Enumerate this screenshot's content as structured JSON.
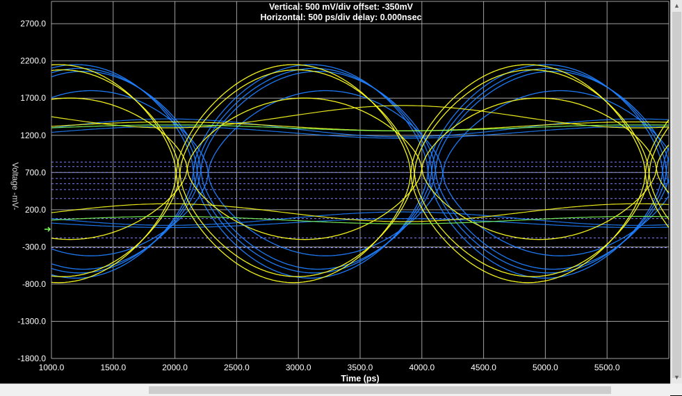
{
  "header": {
    "line1": "Vertical: 500 mV/div  offset: -350mV",
    "line2": "Horizontal: 500 ps/div  delay: 0.000nsec"
  },
  "colors": {
    "background": "#000000",
    "grid": "#c8c8c8",
    "axis_text": "#ffffff",
    "trace_blue": "#1f7fff",
    "trace_yellow": "#ffff1e",
    "trace_green": "#7dff5a",
    "marker_dashed": "#8080ff"
  },
  "chart_data": {
    "type": "line",
    "title": "",
    "xlabel": "Time  (ps)",
    "ylabel": "Voltage  -mV-",
    "xlim": [
      1000,
      6000
    ],
    "ylim": [
      -1800,
      3000
    ],
    "x_ticks": [
      "1000.0",
      "1500.0",
      "2000.0",
      "2500.0",
      "3000.0",
      "3500.0",
      "4000.0",
      "4500.0",
      "5000.0",
      "5500.0"
    ],
    "y_ticks": [
      "2700.0",
      "2200.0",
      "1700.0",
      "1200.0",
      "700.0",
      "200.0",
      "-300.0",
      "-800.0",
      "-1300.0",
      "-1800.0"
    ],
    "grid": true,
    "legend": "none",
    "eye_crossings_ps": [
      2500,
      4300
    ],
    "dashed_reference_levels_mv": [
      840,
      780,
      700,
      620,
      550,
      470,
      350,
      80,
      -180,
      -310
    ],
    "series": [
      {
        "color_key": "trace_blue",
        "high_mv": 2150,
        "low_mv": -720,
        "period_ps": 3800,
        "peak_ps": 1200,
        "waveforms": [
          {
            "high": 2150,
            "low": -720,
            "phase": 0
          },
          {
            "high": 2100,
            "low": -650,
            "phase": 30
          },
          {
            "high": 2060,
            "low": -600,
            "phase": 60
          },
          {
            "high": 1800,
            "low": -420,
            "phase": 120
          }
        ],
        "steady": [
          {
            "level": 1300,
            "drift": 120
          },
          {
            "level": 1240,
            "drift": 80
          },
          {
            "level": 80,
            "drift": -90
          },
          {
            "level": 20,
            "drift": -60
          }
        ]
      },
      {
        "color_key": "trace_yellow",
        "high_mv": 2150,
        "low_mv": -780,
        "period_ps": 3800,
        "peak_ps": 1100,
        "waveforms": [
          {
            "high": 2150,
            "low": -780,
            "phase": -40
          },
          {
            "high": 2080,
            "low": -700,
            "phase": -10
          },
          {
            "high": 1700,
            "low": -200,
            "phase": 50
          }
        ],
        "steady": [
          {
            "level": 1450,
            "drift": -150
          },
          {
            "level": 1320,
            "drift": 60
          },
          {
            "level": 160,
            "drift": 120
          }
        ]
      },
      {
        "color_key": "trace_green",
        "steady": [
          {
            "level": 1300,
            "drift": 40
          },
          {
            "level": 60,
            "drift": 50
          }
        ]
      }
    ]
  }
}
